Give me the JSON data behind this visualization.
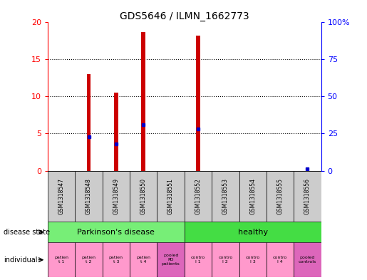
{
  "title": "GDS5646 / ILMN_1662773",
  "samples": [
    "GSM1318547",
    "GSM1318548",
    "GSM1318549",
    "GSM1318550",
    "GSM1318551",
    "GSM1318552",
    "GSM1318553",
    "GSM1318554",
    "GSM1318555",
    "GSM1318556"
  ],
  "counts": [
    0,
    13,
    10.5,
    18.7,
    0,
    18.2,
    0,
    0,
    0,
    0
  ],
  "percentile_ranks_pct": [
    0,
    23,
    18,
    31,
    0,
    28,
    0,
    0,
    0,
    1
  ],
  "ylim_left": [
    0,
    20
  ],
  "ylim_right": [
    0,
    100
  ],
  "yticks_left": [
    0,
    5,
    10,
    15,
    20
  ],
  "yticks_right": [
    0,
    25,
    50,
    75,
    100
  ],
  "bar_color": "#cc0000",
  "percentile_color": "#0000cc",
  "sample_bg": "#cccccc",
  "disease_bg_pd": "#77ee77",
  "disease_bg_healthy": "#44dd44",
  "individual_bg_normal": "#ff99cc",
  "individual_bg_pooled": "#dd66bb",
  "bar_width": 0.15,
  "individuals": [
    "patien\nt 1",
    "patien\nt 2",
    "patien\nt 3",
    "patien\nt 4",
    "pooled\nPD\npatients",
    "contro\nl 1",
    "contro\nl 2",
    "contro\nl 3",
    "contro\nl 4",
    "pooled\ncontrols"
  ]
}
